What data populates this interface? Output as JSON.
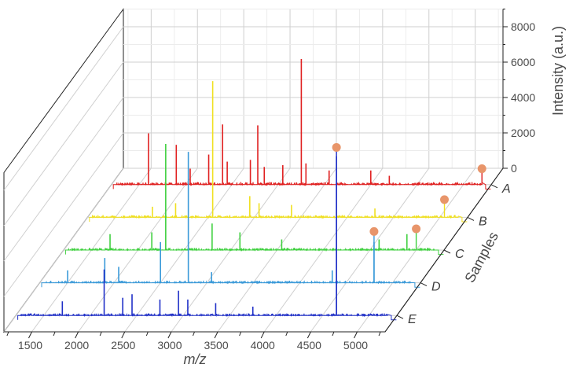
{
  "chart_data": {
    "type": "line",
    "variant": "3d-stacked-spectra",
    "xlabel": "m/z",
    "ylabel": "Intensity (a.u.)",
    "zlabel": "Samples",
    "xlim": [
      1200,
      5300
    ],
    "ylim": [
      0,
      9000
    ],
    "x_ticks": [
      1500,
      2000,
      2500,
      3000,
      3500,
      4000,
      4500,
      5000
    ],
    "y_ticks": [
      0,
      2000,
      4000,
      6000,
      8000
    ],
    "samples": [
      "A",
      "B",
      "C",
      "D",
      "E"
    ],
    "grid": true,
    "series": [
      {
        "sample": "A",
        "color": "#e02020",
        "noise_amplitude": 150,
        "peaks": [
          {
            "x": 1600,
            "y": 2900
          },
          {
            "x": 1900,
            "y": 2250
          },
          {
            "x": 2050,
            "y": 900
          },
          {
            "x": 2250,
            "y": 1700
          },
          {
            "x": 2400,
            "y": 3400
          },
          {
            "x": 2450,
            "y": 1300
          },
          {
            "x": 2700,
            "y": 1400
          },
          {
            "x": 2780,
            "y": 3350
          },
          {
            "x": 2850,
            "y": 1000
          },
          {
            "x": 3050,
            "y": 1100
          },
          {
            "x": 3250,
            "y": 7100
          },
          {
            "x": 3300,
            "y": 1200
          },
          {
            "x": 3550,
            "y": 800
          },
          {
            "x": 4000,
            "y": 800
          },
          {
            "x": 4200,
            "y": 500
          }
        ],
        "marker": {
          "x": 5200,
          "y": 900
        }
      },
      {
        "sample": "B",
        "color": "#f0e020",
        "noise_amplitude": 130,
        "peaks": [
          {
            "x": 1900,
            "y": 600
          },
          {
            "x": 2150,
            "y": 800
          },
          {
            "x": 2550,
            "y": 7700
          },
          {
            "x": 2950,
            "y": 1200
          },
          {
            "x": 3050,
            "y": 800
          },
          {
            "x": 3400,
            "y": 700
          },
          {
            "x": 4300,
            "y": 500
          }
        ],
        "marker": {
          "x": 5050,
          "y": 1000
        }
      },
      {
        "sample": "C",
        "color": "#40d040",
        "noise_amplitude": 130,
        "peaks": [
          {
            "x": 1700,
            "y": 900
          },
          {
            "x": 2300,
            "y": 6000
          },
          {
            "x": 2150,
            "y": 1000
          },
          {
            "x": 2800,
            "y": 1500
          },
          {
            "x": 3100,
            "y": 1000
          },
          {
            "x": 3550,
            "y": 600
          },
          {
            "x": 4600,
            "y": 600
          },
          {
            "x": 4900,
            "y": 900
          }
        ],
        "marker": {
          "x": 5000,
          "y": 1200
        }
      },
      {
        "sample": "D",
        "color": "#3a9ad9",
        "noise_amplitude": 120,
        "peaks": [
          {
            "x": 1500,
            "y": 700
          },
          {
            "x": 1900,
            "y": 1400
          },
          {
            "x": 2050,
            "y": 900
          },
          {
            "x": 2500,
            "y": 2300
          },
          {
            "x": 2800,
            "y": 7400
          },
          {
            "x": 3050,
            "y": 600
          },
          {
            "x": 4350,
            "y": 700
          },
          {
            "x": 4800,
            "y": 2300
          }
        ],
        "marker": {
          "x": 4800,
          "y": 2900
        }
      },
      {
        "sample": "E",
        "color": "#2030c8",
        "noise_amplitude": 120,
        "peaks": [
          {
            "x": 1700,
            "y": 800
          },
          {
            "x": 2150,
            "y": 2600
          },
          {
            "x": 2350,
            "y": 1000
          },
          {
            "x": 2450,
            "y": 1200
          },
          {
            "x": 2750,
            "y": 900
          },
          {
            "x": 2950,
            "y": 1400
          },
          {
            "x": 3050,
            "y": 900
          },
          {
            "x": 3350,
            "y": 700
          },
          {
            "x": 3750,
            "y": 500
          },
          {
            "x": 4650,
            "y": 9000
          }
        ],
        "marker": {
          "x": 4650,
          "y": 9500
        }
      }
    ],
    "marker_color": "#e8956a"
  }
}
